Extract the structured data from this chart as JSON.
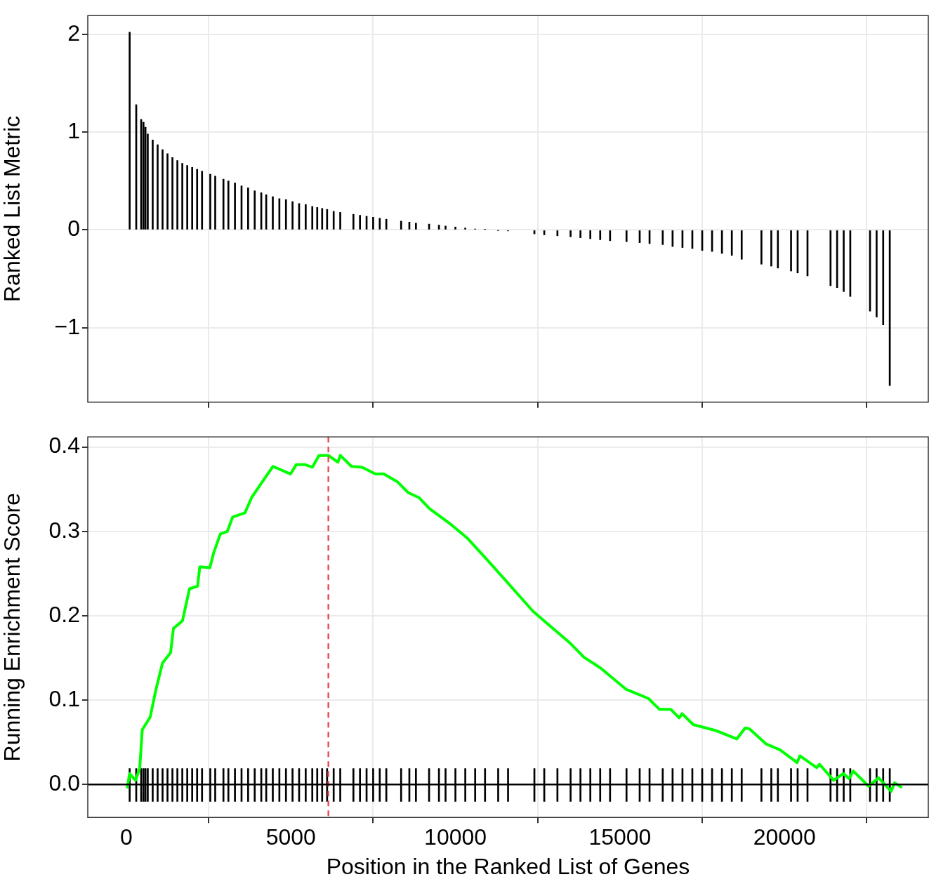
{
  "chart_data": [
    {
      "type": "bar",
      "ylabel": "Ranked List Metric",
      "xlim": [
        -1173,
        24371
      ],
      "xticks": [
        0,
        5000,
        10000,
        15000,
        20000
      ],
      "ylim": [
        -1.76,
        2.19
      ],
      "yticks": [
        {
          "value": -1,
          "label": "−1"
        },
        0,
        1,
        2
      ],
      "grid": true,
      "legend": false,
      "tick_labels": "y",
      "series": [
        {
          "color": "#000000",
          "x": [
            100,
            300,
            450,
            520,
            580,
            650,
            800,
            950,
            1100,
            1250,
            1400,
            1550,
            1700,
            1850,
            2000,
            2150,
            2300,
            2550,
            2700,
            2950,
            3100,
            3300,
            3500,
            3700,
            3900,
            4100,
            4250,
            4450,
            4650,
            4850,
            5050,
            5250,
            5450,
            5650,
            5800,
            5950,
            6100,
            6300,
            6500,
            6900,
            7100,
            7300,
            7500,
            7700,
            7900,
            8350,
            8600,
            8800,
            9200,
            9500,
            9700,
            10000,
            10300,
            10600,
            10900,
            11300,
            11600,
            12400,
            12700,
            13100,
            13500,
            13800,
            14100,
            14400,
            14700,
            15200,
            15600,
            15900,
            16300,
            16600,
            16900,
            17200,
            17500,
            17800,
            18100,
            18400,
            18700,
            19300,
            19600,
            19800,
            20200,
            20400,
            20700,
            21400,
            21600,
            21800,
            22000,
            22600,
            22800,
            23000,
            23200
          ],
          "values": [
            2.02,
            1.28,
            1.13,
            1.1,
            1.05,
            0.98,
            0.92,
            0.87,
            0.82,
            0.78,
            0.74,
            0.71,
            0.68,
            0.66,
            0.64,
            0.62,
            0.6,
            0.57,
            0.55,
            0.52,
            0.5,
            0.48,
            0.45,
            0.43,
            0.4,
            0.38,
            0.36,
            0.34,
            0.32,
            0.31,
            0.29,
            0.27,
            0.26,
            0.24,
            0.23,
            0.22,
            0.21,
            0.19,
            0.18,
            0.16,
            0.15,
            0.14,
            0.13,
            0.12,
            0.11,
            0.09,
            0.08,
            0.07,
            0.06,
            0.05,
            0.04,
            0.03,
            0.02,
            0.01,
            0.005,
            -0.005,
            -0.01,
            -0.04,
            -0.05,
            -0.06,
            -0.07,
            -0.08,
            -0.09,
            -0.1,
            -0.11,
            -0.12,
            -0.13,
            -0.14,
            -0.15,
            -0.17,
            -0.18,
            -0.19,
            -0.21,
            -0.22,
            -0.24,
            -0.26,
            -0.3,
            -0.35,
            -0.37,
            -0.39,
            -0.42,
            -0.44,
            -0.47,
            -0.57,
            -0.59,
            -0.63,
            -0.68,
            -0.83,
            -0.89,
            -0.97,
            -1.59
          ]
        }
      ]
    },
    {
      "type": "line",
      "xlabel": "Position in the Ranked List of Genes",
      "ylabel": "Running Enrichment Score",
      "xlim": [
        -1173,
        24371
      ],
      "xticks": [
        0,
        5000,
        10000,
        15000,
        20000
      ],
      "ylim": [
        -0.039,
        0.412
      ],
      "yticks": [
        {
          "value": 0,
          "label": "0.0"
        },
        0.1,
        0.2,
        0.3,
        0.4
      ],
      "grid": true,
      "legend": false,
      "line_style": "solid",
      "marker": "none",
      "ref_lines": [
        {
          "axis": "x",
          "value": 6140,
          "color": "#e5505a",
          "line_style": "dashed"
        },
        {
          "axis": "y",
          "value": 0,
          "color": "#000000",
          "line_style": "solid"
        }
      ],
      "series": [
        {
          "color": "#00ff00",
          "x": [
            32,
            98,
            277,
            405,
            484,
            725,
            895,
            1098,
            1343,
            1430,
            1705,
            1919,
            2164,
            2231,
            2537,
            2657,
            2857,
            3070,
            3230,
            3604,
            3806,
            4136,
            4456,
            4989,
            5160,
            5437,
            5650,
            5855,
            6140,
            6428,
            6503,
            6840,
            7164,
            7569,
            7825,
            8230,
            8561,
            8891,
            9211,
            9872,
            10362,
            11087,
            12367,
            12751,
            13476,
            13902,
            14414,
            15181,
            15864,
            16205,
            16546,
            16802,
            16887,
            17228,
            17910,
            18550,
            18806,
            18934,
            19446,
            19872,
            20384,
            20469,
            20981,
            21066,
            21493,
            21791,
            21962,
            22090,
            22559,
            22857,
            23241,
            23348,
            23539
          ],
          "values": [
            -0.003,
            0.013,
            0.005,
            0.019,
            0.065,
            0.08,
            0.112,
            0.144,
            0.156,
            0.185,
            0.194,
            0.232,
            0.235,
            0.258,
            0.257,
            0.275,
            0.297,
            0.3,
            0.317,
            0.322,
            0.34,
            0.359,
            0.377,
            0.368,
            0.379,
            0.379,
            0.376,
            0.39,
            0.39,
            0.382,
            0.39,
            0.377,
            0.376,
            0.368,
            0.368,
            0.359,
            0.346,
            0.34,
            0.327,
            0.308,
            0.292,
            0.261,
            0.205,
            0.192,
            0.168,
            0.151,
            0.138,
            0.113,
            0.102,
            0.089,
            0.089,
            0.079,
            0.084,
            0.071,
            0.064,
            0.054,
            0.067,
            0.066,
            0.048,
            0.041,
            0.026,
            0.034,
            0.02,
            0.024,
            0.005,
            0.013,
            0.007,
            0.016,
            -0.002,
            0.008,
            -0.008,
            0.002,
            -0.003
          ]
        },
        {
          "type": "bar",
          "color": "#000000",
          "x": [
            100,
            300,
            450,
            520,
            580,
            650,
            800,
            950,
            1100,
            1250,
            1400,
            1550,
            1700,
            1850,
            2000,
            2150,
            2300,
            2550,
            2700,
            2950,
            3100,
            3300,
            3500,
            3700,
            3900,
            4100,
            4250,
            4450,
            4650,
            4850,
            5050,
            5250,
            5450,
            5650,
            5800,
            5950,
            6100,
            6300,
            6500,
            6900,
            7100,
            7300,
            7500,
            7700,
            7900,
            8350,
            8600,
            8800,
            9200,
            9500,
            9700,
            10000,
            10300,
            10600,
            10900,
            11300,
            11600,
            12400,
            12700,
            13100,
            13500,
            13800,
            14100,
            14400,
            14700,
            15200,
            15600,
            15900,
            16300,
            16600,
            16900,
            17200,
            17500,
            17800,
            18100,
            18400,
            18700,
            19300,
            19600,
            19800,
            20200,
            20400,
            20700,
            21400,
            21600,
            21800,
            22000,
            22600,
            22800,
            23000,
            23200
          ],
          "base": [
            -0.02,
            -0.02,
            -0.02,
            -0.02,
            -0.02,
            -0.02,
            -0.02,
            -0.02,
            -0.02,
            -0.02,
            -0.02,
            -0.02,
            -0.02,
            -0.02,
            -0.02,
            -0.02,
            -0.02,
            -0.02,
            -0.02,
            -0.02,
            -0.02,
            -0.02,
            -0.02,
            -0.02,
            -0.02,
            -0.02,
            -0.02,
            -0.02,
            -0.02,
            -0.02,
            -0.02,
            -0.02,
            -0.02,
            -0.02,
            -0.02,
            -0.02,
            -0.02,
            -0.02,
            -0.02,
            -0.02,
            -0.02,
            -0.02,
            -0.02,
            -0.02,
            -0.02,
            -0.02,
            -0.02,
            -0.02,
            -0.02,
            -0.02,
            -0.02,
            -0.02,
            -0.02,
            -0.02,
            -0.02,
            -0.02,
            -0.02,
            -0.02,
            -0.02,
            -0.02,
            -0.02,
            -0.02,
            -0.02,
            -0.02,
            -0.02,
            -0.02,
            -0.02,
            -0.02,
            -0.02,
            -0.02,
            -0.02,
            -0.02,
            -0.02,
            -0.02,
            -0.02,
            -0.02,
            -0.02,
            -0.02,
            -0.02,
            -0.02,
            -0.02,
            -0.02,
            -0.02,
            -0.02,
            -0.02,
            -0.02,
            -0.02,
            -0.02,
            -0.02,
            -0.02,
            -0.02
          ],
          "values": [
            0.039,
            0.039,
            0.039,
            0.039,
            0.039,
            0.039,
            0.039,
            0.039,
            0.039,
            0.039,
            0.039,
            0.039,
            0.039,
            0.039,
            0.039,
            0.039,
            0.039,
            0.039,
            0.039,
            0.039,
            0.039,
            0.039,
            0.039,
            0.039,
            0.039,
            0.039,
            0.039,
            0.039,
            0.039,
            0.039,
            0.039,
            0.039,
            0.039,
            0.039,
            0.039,
            0.039,
            0.039,
            0.039,
            0.039,
            0.039,
            0.039,
            0.039,
            0.039,
            0.039,
            0.039,
            0.039,
            0.039,
            0.039,
            0.039,
            0.039,
            0.039,
            0.039,
            0.039,
            0.039,
            0.039,
            0.039,
            0.039,
            0.039,
            0.039,
            0.039,
            0.039,
            0.039,
            0.039,
            0.039,
            0.039,
            0.039,
            0.039,
            0.039,
            0.039,
            0.039,
            0.039,
            0.039,
            0.039,
            0.039,
            0.039,
            0.039,
            0.039,
            0.039,
            0.039,
            0.039,
            0.039,
            0.039,
            0.039,
            0.039,
            0.039,
            0.039,
            0.039,
            0.039,
            0.039,
            0.039,
            0.039
          ]
        }
      ]
    }
  ]
}
